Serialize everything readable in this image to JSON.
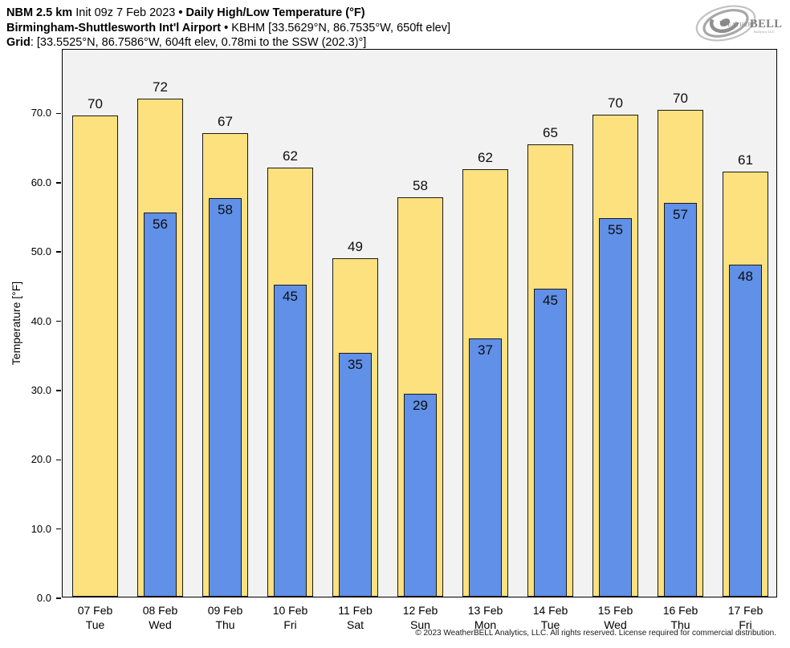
{
  "header": {
    "bullet": "•",
    "line1": {
      "model": "NBM 2.5 km",
      "init": "Init 09z 7 Feb 2023",
      "title": "Daily High/Low Temperature (°F)"
    },
    "line2": {
      "station": "Birmingham-Shuttlesworth Int'l Airport",
      "meta": "KBHM [33.5629°N, 86.7535°W, 650ft elev]"
    },
    "line3": {
      "label": "Grid",
      "value": ": [33.5525°N, 86.7586°W, 604ft elev, 0.78mi to the SSW (202.3)°]"
    }
  },
  "logo": {
    "brand_weather": "Weather",
    "brand_bell": "BELL",
    "sub": "Analytics LLC"
  },
  "footer": {
    "copyright": "© 2023 WeatherBELL Analytics, LLC. All rights reserved. License required for commercial distribution."
  },
  "chart_data": {
    "type": "bar",
    "title": "NBM 2.5 km Daily High/Low Temperature (°F) — Birmingham-Shuttlesworth Int'l Airport (KBHM)",
    "xlabel": "",
    "ylabel": "Temperature [°F]",
    "ylim": [
      0,
      79.2
    ],
    "yticks": [
      0,
      10,
      20,
      30,
      40,
      50,
      60,
      70
    ],
    "ytick_labels": [
      "0.0",
      "10.0",
      "20.0",
      "30.0",
      "40.0",
      "50.0",
      "60.0",
      "70.0"
    ],
    "grid": false,
    "plot_bg": "#F2F2F2",
    "categories": [
      {
        "date": "07 Feb",
        "day": "Tue"
      },
      {
        "date": "08 Feb",
        "day": "Wed"
      },
      {
        "date": "09 Feb",
        "day": "Thu"
      },
      {
        "date": "10 Feb",
        "day": "Fri"
      },
      {
        "date": "11 Feb",
        "day": "Sat"
      },
      {
        "date": "12 Feb",
        "day": "Sun"
      },
      {
        "date": "13 Feb",
        "day": "Mon"
      },
      {
        "date": "14 Feb",
        "day": "Tue"
      },
      {
        "date": "15 Feb",
        "day": "Wed"
      },
      {
        "date": "16 Feb",
        "day": "Thu"
      },
      {
        "date": "17 Feb",
        "day": "Fri"
      }
    ],
    "series": [
      {
        "name": "Daily High",
        "color": "#FDE17E",
        "values": [
          69.5,
          71.9,
          66.9,
          62.0,
          48.9,
          57.7,
          61.7,
          65.3,
          69.6,
          70.3,
          61.4
        ],
        "labels": [
          "70",
          "72",
          "67",
          "62",
          "49",
          "58",
          "62",
          "65",
          "70",
          "70",
          "61"
        ]
      },
      {
        "name": "Daily Low",
        "color": "#6090E7",
        "values": [
          null,
          55.5,
          57.6,
          45.1,
          35.2,
          29.3,
          37.3,
          44.5,
          54.6,
          56.9,
          47.9
        ],
        "labels": [
          "",
          "56",
          "58",
          "45",
          "35",
          "29",
          "37",
          "45",
          "55",
          "57",
          "48"
        ]
      }
    ]
  }
}
